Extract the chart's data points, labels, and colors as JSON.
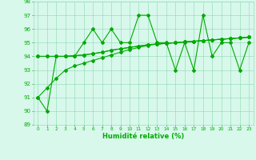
{
  "x": [
    0,
    1,
    2,
    3,
    4,
    5,
    6,
    7,
    8,
    9,
    10,
    11,
    12,
    13,
    14,
    15,
    16,
    17,
    18,
    19,
    20,
    21,
    22,
    23
  ],
  "series1": [
    91,
    90,
    94,
    94,
    94,
    95,
    96,
    95,
    96,
    95,
    95,
    97,
    97,
    95,
    95,
    93,
    95,
    93,
    97,
    94,
    95,
    95,
    93,
    95
  ],
  "series2_linear": [
    91,
    91.7,
    92.4,
    93.0,
    93.3,
    93.5,
    93.7,
    93.9,
    94.1,
    94.3,
    94.5,
    94.65,
    94.8,
    94.9,
    94.95,
    95.0,
    95.05,
    95.1,
    95.15,
    95.2,
    95.25,
    95.3,
    95.35,
    95.4
  ],
  "series3": [
    94,
    94,
    94,
    94,
    94.05,
    94.1,
    94.2,
    94.3,
    94.45,
    94.55,
    94.65,
    94.75,
    94.85,
    94.9,
    94.95,
    95.0,
    95.05,
    95.1,
    95.15,
    95.2,
    95.25,
    95.3,
    95.35,
    95.4
  ],
  "series4": [
    94,
    94,
    94,
    94,
    94.05,
    94.1,
    94.2,
    94.3,
    94.45,
    94.55,
    94.65,
    94.75,
    94.85,
    94.9,
    94.95,
    95.0,
    95.05,
    95.1,
    95.15,
    95.2,
    95.25,
    95.3,
    95.35,
    95.4
  ],
  "line_color": "#00aa00",
  "bg_color": "#d8f8ec",
  "grid_color": "#99ddbb",
  "xlabel": "Humidité relative (%)",
  "ylim": [
    89,
    98
  ],
  "xlim": [
    -0.5,
    23.5
  ],
  "yticks": [
    89,
    90,
    91,
    92,
    93,
    94,
    95,
    96,
    97,
    98
  ],
  "xticks": [
    0,
    1,
    2,
    3,
    4,
    5,
    6,
    7,
    8,
    9,
    10,
    11,
    12,
    13,
    14,
    15,
    16,
    17,
    18,
    19,
    20,
    21,
    22,
    23
  ]
}
